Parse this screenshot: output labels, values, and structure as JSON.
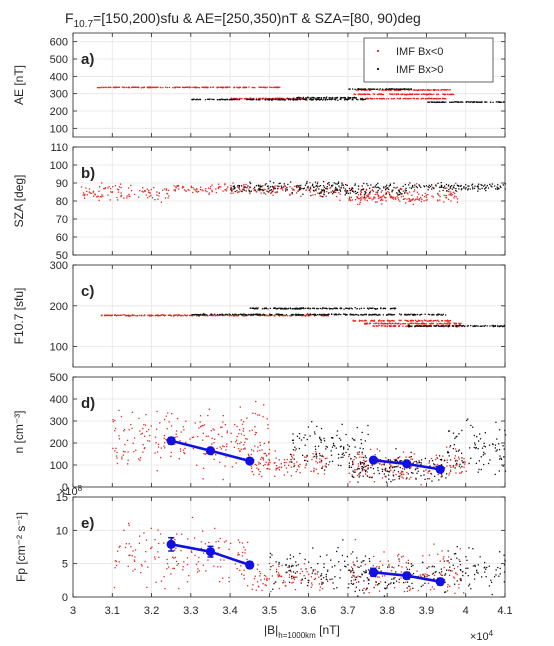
{
  "figure": {
    "title_main": "F",
    "title_sub": "10.7",
    "title_rest": "=[150,200)sfu & AE=[250,350)nT & SZA=[80, 90)deg",
    "x_exponent_base": "×10",
    "x_exponent_power": "4",
    "y_exponent_base": "×10",
    "y_exponent_power": "8",
    "xlabel_main": "|B|",
    "xlabel_sub": "h=1000km",
    "xlabel_unit": " [nT]",
    "colors": {
      "bx_neg": "#e8251f",
      "bx_pos": "#111111",
      "binned": "#1010e0",
      "grid": "#e6e6e6",
      "axis": "#262626"
    }
  },
  "legend": {
    "position": "top-right of panel a",
    "entries": [
      {
        "label": "IMF Bx<0",
        "color": "#e8251f"
      },
      {
        "label": "IMF Bx>0",
        "color": "#111111"
      }
    ]
  },
  "chart_data": [
    {
      "id": "a",
      "type": "scatter",
      "panel_label": "a)",
      "ylabel": "AE [nT]",
      "xlim": [
        30000,
        41000
      ],
      "ylim": [
        50,
        650
      ],
      "yticks": [
        100,
        200,
        300,
        400,
        500,
        600
      ],
      "xticks": [
        30000,
        31000,
        32000,
        33000,
        34000,
        35000,
        36000,
        37000,
        38000,
        39000,
        40000,
        41000
      ],
      "grid": true,
      "series": [
        {
          "name": "IMF Bx<0",
          "color": "#e8251f",
          "bands": [
            [
              30600,
              35300,
              340,
              2
            ],
            [
              34000,
              36000,
              275,
              3
            ],
            [
              37100,
              39600,
              325,
              2
            ],
            [
              37100,
              39700,
              300,
              2
            ],
            [
              37300,
              39500,
              275,
              2
            ]
          ]
        },
        {
          "name": "IMF Bx>0",
          "color": "#111111",
          "bands": [
            [
              33000,
              34800,
              270,
              2
            ],
            [
              34800,
              37500,
              270,
              4
            ],
            [
              35600,
              37200,
              280,
              3
            ],
            [
              39000,
              41000,
              255,
              2
            ],
            [
              37000,
              38600,
              330,
              2
            ]
          ]
        }
      ]
    },
    {
      "id": "b",
      "type": "scatter",
      "panel_label": "b)",
      "ylabel": "SZA [deg]",
      "xlim": [
        30000,
        41000
      ],
      "ylim": [
        50,
        110
      ],
      "yticks": [
        50,
        60,
        70,
        80,
        90,
        100,
        110
      ],
      "xticks": [
        30000,
        31000,
        32000,
        33000,
        34000,
        35000,
        36000,
        37000,
        38000,
        39000,
        40000,
        41000
      ],
      "grid": true,
      "series": [
        {
          "name": "IMF Bx<0",
          "color": "#e8251f",
          "bands": [
            [
              30200,
              32500,
              85,
              5
            ],
            [
              32500,
              35500,
              87,
              3
            ],
            [
              35500,
              37000,
              86,
              4
            ],
            [
              37000,
              39800,
              84,
              5
            ],
            [
              37200,
              39000,
              82,
              2
            ]
          ]
        },
        {
          "name": "IMF Bx>0",
          "color": "#111111",
          "bands": [
            [
              34000,
              37000,
              88,
              3
            ],
            [
              36000,
              38500,
              87,
              4
            ],
            [
              38500,
              41000,
              88,
              2
            ]
          ]
        }
      ]
    },
    {
      "id": "c",
      "type": "scatter",
      "panel_label": "c)",
      "ylabel": "F10.7 [sfu]",
      "xlim": [
        30000,
        41000
      ],
      "ylim": [
        50,
        300
      ],
      "yticks": [
        100,
        200,
        300
      ],
      "xticks": [
        30000,
        31000,
        32000,
        33000,
        34000,
        35000,
        36000,
        37000,
        38000,
        39000,
        40000,
        41000
      ],
      "grid": true,
      "series": [
        {
          "name": "IMF Bx<0",
          "color": "#e8251f",
          "bands": [
            [
              30700,
              36500,
              178,
              1.5
            ],
            [
              37100,
              39600,
              165,
              1.5
            ],
            [
              37400,
              39900,
              158,
              1.5
            ],
            [
              37600,
              40000,
              152,
              1.5
            ]
          ]
        },
        {
          "name": "IMF Bx>0",
          "color": "#111111",
          "bands": [
            [
              34500,
              38200,
              195,
              1.5
            ],
            [
              33000,
              39500,
              180,
              1.5
            ],
            [
              38500,
              41000,
              152,
              1.5
            ]
          ]
        }
      ]
    },
    {
      "id": "d",
      "type": "scatter",
      "panel_label": "d)",
      "ylabel": "n [cm⁻³]",
      "xlim": [
        30000,
        41000
      ],
      "ylim": [
        0,
        500
      ],
      "yticks": [
        0,
        100,
        200,
        300,
        400,
        500
      ],
      "xticks": [
        30000,
        31000,
        32000,
        33000,
        34000,
        35000,
        36000,
        37000,
        38000,
        39000,
        40000,
        41000
      ],
      "grid": true,
      "series": [
        {
          "name": "IMF Bx<0",
          "color": "#e8251f",
          "bands": [
            [
              31000,
              35000,
              220,
              130
            ],
            [
              34500,
              36500,
              110,
              60
            ],
            [
              37000,
              40000,
              100,
              70
            ]
          ]
        },
        {
          "name": "IMF Bx>0",
          "color": "#111111",
          "bands": [
            [
              35500,
              37500,
              180,
              120
            ],
            [
              37000,
              39500,
              90,
              60
            ],
            [
              39500,
              41000,
              180,
              120
            ]
          ]
        }
      ],
      "binned": {
        "color": "#1010e0",
        "groups": [
          {
            "x": [
              32500,
              33500,
              34500
            ],
            "y": [
              210,
              165,
              118
            ],
            "err": [
              15,
              10,
              8
            ]
          },
          {
            "x": [
              37650,
              38500,
              39350
            ],
            "y": [
              122,
              105,
              80
            ],
            "err": [
              12,
              10,
              8
            ]
          }
        ]
      }
    },
    {
      "id": "e",
      "type": "scatter",
      "panel_label": "e)",
      "ylabel": "Fp [cm⁻² s⁻¹]",
      "xlim": [
        30000,
        41000
      ],
      "ylim": [
        0,
        15
      ],
      "yticks": [
        0,
        5,
        10,
        15
      ],
      "xticks": [
        30000,
        31000,
        32000,
        33000,
        34000,
        35000,
        36000,
        37000,
        38000,
        39000,
        40000,
        41000
      ],
      "grid": true,
      "series": [
        {
          "name": "IMF Bx<0",
          "color": "#e8251f",
          "bands": [
            [
              31000,
              34500,
              6.5,
              4.5
            ],
            [
              34500,
              36500,
              3,
              2
            ],
            [
              37000,
              40000,
              4,
              3.5
            ]
          ]
        },
        {
          "name": "IMF Bx>0",
          "color": "#111111",
          "bands": [
            [
              35000,
              37500,
              4,
              3.5
            ],
            [
              37000,
              39500,
              3,
              2.5
            ],
            [
              39500,
              41000,
              4,
              3
            ]
          ]
        }
      ],
      "binned": {
        "color": "#1010e0",
        "groups": [
          {
            "x": [
              32500,
              33500,
              34500
            ],
            "y": [
              7.9,
              6.8,
              4.8
            ],
            "err": [
              1.0,
              0.8,
              0.5
            ]
          },
          {
            "x": [
              37650,
              38500,
              39350
            ],
            "y": [
              3.7,
              3.2,
              2.3
            ],
            "err": [
              0.6,
              0.5,
              0.5
            ]
          }
        ]
      }
    }
  ]
}
